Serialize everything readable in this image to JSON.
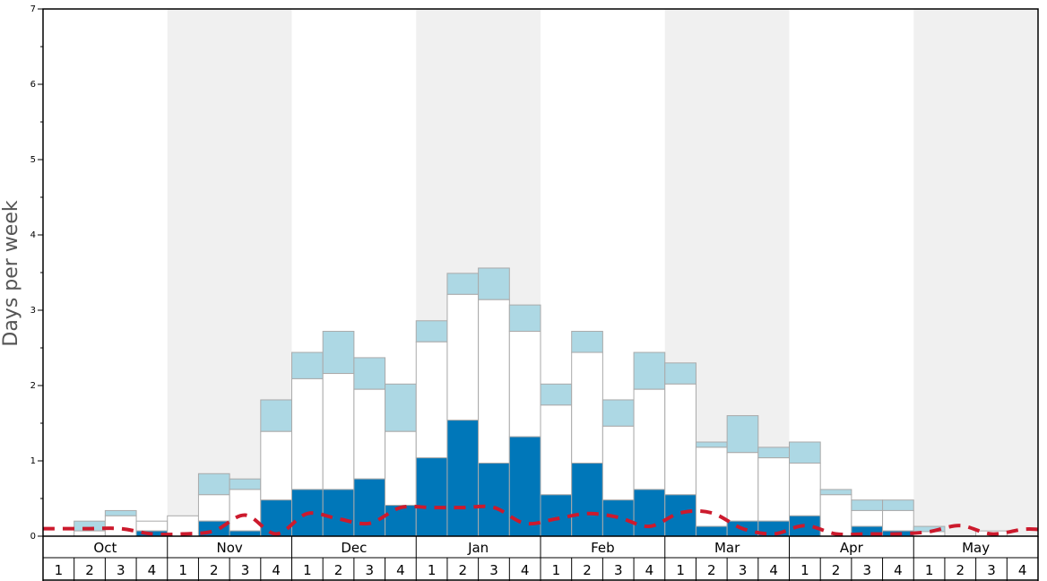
{
  "chart_data": {
    "type": "bar",
    "ylabel": "Days per week",
    "ylim": [
      0,
      7
    ],
    "yticks": [
      "0",
      "1",
      "2",
      "3",
      "4",
      "5",
      "6",
      "7"
    ],
    "months": [
      "Oct",
      "Nov",
      "Dec",
      "Jan",
      "Feb",
      "Mar",
      "Apr",
      "May"
    ],
    "weeks": [
      "1",
      "2",
      "3",
      "4"
    ],
    "colors": {
      "dark": "#0077b9",
      "white": "#ffffff",
      "light": "#add8e4",
      "line": "#cc1a2d",
      "shade": "#f0f0f0",
      "bar_border": "#aaaaaa"
    },
    "series": {
      "dark": [
        0,
        0,
        0,
        0.07,
        0,
        0.2,
        0.07,
        0.48,
        0.62,
        0.62,
        0.76,
        0.41,
        1.04,
        1.54,
        0.97,
        1.32,
        0.55,
        0.97,
        0.48,
        0.62,
        0.55,
        0.13,
        0.2,
        0.2,
        0.27,
        0,
        0.13,
        0.07,
        0,
        0,
        0,
        0
      ],
      "white_top": [
        0,
        0.07,
        0.27,
        0.2,
        0.27,
        0.55,
        0.62,
        1.39,
        2.09,
        2.16,
        1.95,
        1.39,
        2.58,
        3.21,
        3.14,
        2.72,
        1.74,
        2.44,
        1.46,
        1.95,
        2.02,
        1.18,
        1.11,
        1.04,
        0.97,
        0.55,
        0.34,
        0.34,
        0.06,
        0,
        0.07,
        0
      ],
      "total": [
        0,
        0.2,
        0.34,
        0.2,
        0.27,
        0.83,
        0.76,
        1.81,
        2.44,
        2.72,
        2.37,
        2.02,
        2.86,
        3.49,
        3.56,
        3.07,
        2.02,
        2.72,
        1.81,
        2.44,
        2.3,
        1.25,
        1.6,
        1.18,
        1.25,
        0.62,
        0.48,
        0.48,
        0.13,
        0,
        0.07,
        0
      ],
      "line": [
        0.1,
        0.1,
        0.1,
        0.03,
        0.03,
        0.07,
        0.28,
        0.03,
        0.3,
        0.23,
        0.17,
        0.38,
        0.38,
        0.38,
        0.38,
        0.17,
        0.23,
        0.3,
        0.25,
        0.13,
        0.31,
        0.31,
        0.1,
        0.03,
        0.14,
        0.03,
        0.03,
        0.03,
        0.06,
        0.14,
        0.03,
        0.09
      ]
    }
  }
}
